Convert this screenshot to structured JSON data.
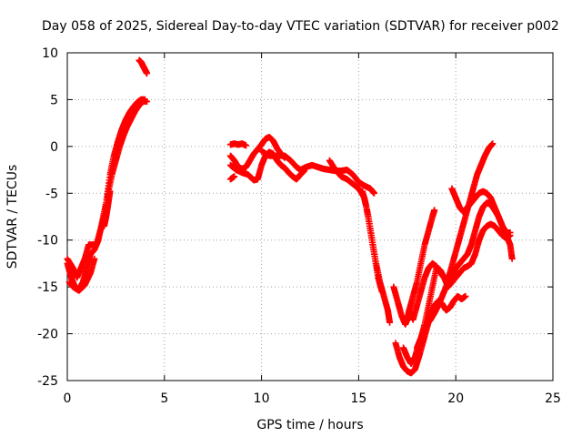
{
  "chart_data": {
    "type": "scatter",
    "title": "Day 058 of 2025, Sidereal Day-to-day VTEC variation (SDTVAR) for receiver p002",
    "xlabel": "GPS time / hours",
    "ylabel": "SDTVAR / TECUs",
    "xlim": [
      0,
      25
    ],
    "ylim": [
      -25,
      10
    ],
    "x_ticks": [
      0,
      5,
      10,
      15,
      20,
      25
    ],
    "x_tick_labels": [
      "0",
      "5",
      "10",
      "15",
      "20",
      "25"
    ],
    "y_ticks": [
      -25,
      -20,
      -15,
      -10,
      -5,
      0,
      5,
      10
    ],
    "y_tick_labels": [
      "-25",
      "-20",
      "-15",
      "-10",
      "-5",
      "0",
      "5",
      "10"
    ],
    "grid": true,
    "marker": "+",
    "series": [
      {
        "color": "#ff0000",
        "tracks": [
          [
            [
              0.0,
              -12.5
            ],
            [
              0.2,
              -14.0
            ],
            [
              0.4,
              -15.0
            ],
            [
              0.6,
              -15.3
            ],
            [
              0.8,
              -14.5
            ],
            [
              1.0,
              -13.0
            ],
            [
              1.2,
              -11.5
            ],
            [
              1.4,
              -11.0
            ],
            [
              1.6,
              -10.0
            ],
            [
              1.8,
              -8.0
            ],
            [
              2.0,
              -6.0
            ],
            [
              2.2,
              -3.0
            ],
            [
              2.4,
              -1.0
            ],
            [
              2.6,
              0.5
            ],
            [
              2.8,
              1.8
            ],
            [
              3.0,
              2.8
            ],
            [
              3.2,
              3.6
            ],
            [
              3.4,
              4.2
            ],
            [
              3.6,
              4.7
            ],
            [
              3.8,
              5.0
            ],
            [
              4.0,
              5.0
            ]
          ],
          [
            [
              0.0,
              -12.0
            ],
            [
              0.3,
              -13.0
            ],
            [
              0.5,
              -14.0
            ],
            [
              0.7,
              -13.0
            ],
            [
              0.9,
              -12.0
            ],
            [
              1.1,
              -10.5
            ],
            [
              1.3,
              -10.5
            ],
            [
              1.5,
              -10.5
            ],
            [
              1.7,
              -9.0
            ],
            [
              1.9,
              -7.5
            ],
            [
              2.1,
              -5.0
            ],
            [
              2.3,
              -3.0
            ],
            [
              2.5,
              -1.5
            ],
            [
              2.7,
              0.0
            ],
            [
              2.9,
              1.2
            ],
            [
              3.1,
              2.2
            ],
            [
              3.3,
              3.0
            ],
            [
              3.5,
              3.8
            ],
            [
              3.7,
              4.4
            ],
            [
              3.9,
              4.8
            ],
            [
              4.1,
              4.8
            ]
          ],
          [
            [
              0.1,
              -14.5
            ],
            [
              0.3,
              -15.0
            ],
            [
              0.6,
              -15.4
            ],
            [
              0.9,
              -14.8
            ],
            [
              1.2,
              -13.5
            ],
            [
              1.4,
              -12.0
            ]
          ],
          [
            [
              1.9,
              -8.5
            ],
            [
              2.0,
              -7.5
            ],
            [
              2.1,
              -6.2
            ],
            [
              2.2,
              -4.8
            ]
          ],
          [
            [
              3.7,
              9.2
            ],
            [
              3.8,
              9.0
            ],
            [
              3.9,
              8.6
            ],
            [
              4.0,
              8.2
            ],
            [
              4.1,
              7.8
            ]
          ],
          [
            [
              8.4,
              0.2
            ],
            [
              8.6,
              0.3
            ],
            [
              8.8,
              0.2
            ],
            [
              9.0,
              0.3
            ],
            [
              9.2,
              0.1
            ]
          ],
          [
            [
              8.4,
              -1.0
            ],
            [
              8.6,
              -1.5
            ],
            [
              8.8,
              -2.2
            ],
            [
              9.0,
              -2.4
            ],
            [
              9.2,
              -2.2
            ],
            [
              9.4,
              -1.5
            ],
            [
              9.6,
              -0.8
            ],
            [
              9.8,
              -0.3
            ],
            [
              10.0,
              0.2
            ],
            [
              10.2,
              0.8
            ],
            [
              10.4,
              1.0
            ],
            [
              10.6,
              0.6
            ],
            [
              10.8,
              -0.2
            ],
            [
              11.0,
              -0.8
            ],
            [
              11.2,
              -1.2
            ]
          ],
          [
            [
              8.4,
              -2.0
            ],
            [
              8.7,
              -2.5
            ],
            [
              9.0,
              -2.8
            ],
            [
              9.3,
              -3.0
            ],
            [
              9.6,
              -3.6
            ],
            [
              9.8,
              -3.5
            ],
            [
              10.0,
              -2.0
            ],
            [
              10.2,
              -1.0
            ],
            [
              10.4,
              -0.6
            ],
            [
              10.6,
              -0.8
            ],
            [
              10.8,
              -1.5
            ],
            [
              11.0,
              -2.0
            ],
            [
              11.2,
              -2.3
            ],
            [
              11.4,
              -2.8
            ],
            [
              11.6,
              -3.2
            ],
            [
              11.8,
              -3.5
            ],
            [
              12.0,
              -3.0
            ],
            [
              12.2,
              -2.6
            ]
          ],
          [
            [
              8.4,
              -3.5
            ],
            [
              8.6,
              -3.2
            ]
          ],
          [
            [
              10.0,
              -0.5
            ],
            [
              10.4,
              -1.0
            ],
            [
              10.8,
              -1.0
            ],
            [
              11.2,
              -1.0
            ],
            [
              11.5,
              -1.5
            ],
            [
              11.8,
              -2.2
            ],
            [
              12.0,
              -2.5
            ],
            [
              12.3,
              -2.2
            ],
            [
              12.6,
              -2.0
            ],
            [
              12.9,
              -2.2
            ],
            [
              13.2,
              -2.4
            ],
            [
              13.5,
              -2.5
            ],
            [
              13.8,
              -2.6
            ],
            [
              14.1,
              -2.6
            ],
            [
              14.4,
              -2.5
            ],
            [
              14.7,
              -3.0
            ],
            [
              15.0,
              -3.8
            ],
            [
              15.3,
              -4.2
            ],
            [
              15.6,
              -4.5
            ],
            [
              15.8,
              -5.0
            ]
          ],
          [
            [
              13.5,
              -1.5
            ],
            [
              13.8,
              -2.5
            ],
            [
              14.1,
              -3.2
            ],
            [
              14.4,
              -3.5
            ],
            [
              14.7,
              -4.0
            ],
            [
              15.0,
              -4.5
            ],
            [
              15.3,
              -5.5
            ],
            [
              15.5,
              -7.5
            ],
            [
              15.7,
              -10.0
            ],
            [
              15.9,
              -12.5
            ],
            [
              16.1,
              -14.5
            ],
            [
              16.3,
              -16.0
            ],
            [
              16.5,
              -17.5
            ],
            [
              16.6,
              -18.8
            ]
          ],
          [
            [
              15.2,
              -4.8
            ],
            [
              15.4,
              -6.5
            ],
            [
              15.6,
              -9.0
            ],
            [
              15.8,
              -11.5
            ],
            [
              16.0,
              -14.0
            ],
            [
              16.2,
              -15.5
            ]
          ],
          [
            [
              16.8,
              -15.0
            ],
            [
              17.0,
              -16.5
            ],
            [
              17.2,
              -18.0
            ],
            [
              17.4,
              -19.0
            ],
            [
              17.5,
              -18.5
            ],
            [
              17.6,
              -17.5
            ],
            [
              17.8,
              -16.0
            ],
            [
              18.0,
              -14.5
            ],
            [
              18.2,
              -12.5
            ],
            [
              18.4,
              -10.5
            ],
            [
              18.6,
              -9.0
            ],
            [
              18.8,
              -7.5
            ],
            [
              18.9,
              -6.8
            ]
          ],
          [
            [
              16.9,
              -21.0
            ],
            [
              17.1,
              -22.5
            ],
            [
              17.3,
              -23.5
            ],
            [
              17.5,
              -24.0
            ],
            [
              17.7,
              -24.2
            ],
            [
              17.9,
              -23.8
            ],
            [
              18.1,
              -22.5
            ],
            [
              18.3,
              -21.0
            ],
            [
              18.5,
              -19.5
            ],
            [
              18.7,
              -18.0
            ],
            [
              18.9,
              -17.0
            ],
            [
              19.1,
              -16.5
            ],
            [
              19.3,
              -16.8
            ],
            [
              19.5,
              -17.5
            ],
            [
              19.7,
              -17.2
            ],
            [
              19.9,
              -16.5
            ],
            [
              20.1,
              -16.0
            ],
            [
              20.3,
              -16.3
            ],
            [
              20.5,
              -16.0
            ]
          ],
          [
            [
              17.3,
              -21.5
            ],
            [
              17.5,
              -22.5
            ],
            [
              17.7,
              -23.2
            ],
            [
              17.9,
              -22.5
            ],
            [
              18.1,
              -21.0
            ],
            [
              18.3,
              -20.0
            ],
            [
              18.5,
              -19.0
            ],
            [
              18.7,
              -18.5
            ],
            [
              18.9,
              -17.8
            ],
            [
              19.1,
              -17.0
            ],
            [
              19.3,
              -16.0
            ],
            [
              19.5,
              -15.0
            ],
            [
              19.7,
              -13.5
            ],
            [
              19.9,
              -12.0
            ],
            [
              20.1,
              -10.5
            ],
            [
              20.3,
              -9.0
            ],
            [
              20.5,
              -7.5
            ],
            [
              20.7,
              -6.0
            ],
            [
              20.9,
              -4.5
            ],
            [
              21.1,
              -3.0
            ],
            [
              21.3,
              -2.0
            ],
            [
              21.5,
              -1.0
            ],
            [
              21.7,
              -0.2
            ],
            [
              21.9,
              0.3
            ]
          ],
          [
            [
              18.0,
              -21.5
            ],
            [
              18.2,
              -20.5
            ],
            [
              18.4,
              -19.0
            ],
            [
              18.6,
              -17.0
            ],
            [
              18.8,
              -15.0
            ],
            [
              19.0,
              -13.0
            ],
            [
              19.2,
              -13.2
            ],
            [
              19.4,
              -14.0
            ],
            [
              19.6,
              -15.0
            ],
            [
              19.8,
              -14.5
            ],
            [
              20.0,
              -14.0
            ],
            [
              20.2,
              -13.5
            ],
            [
              20.4,
              -13.0
            ],
            [
              20.6,
              -12.8
            ],
            [
              20.8,
              -12.5
            ],
            [
              21.0,
              -11.5
            ],
            [
              21.2,
              -10.0
            ],
            [
              21.4,
              -9.0
            ],
            [
              21.6,
              -8.5
            ],
            [
              21.8,
              -8.3
            ],
            [
              22.0,
              -8.5
            ],
            [
              22.2,
              -9.0
            ],
            [
              22.4,
              -9.5
            ],
            [
              22.6,
              -9.8
            ],
            [
              22.8,
              -9.5
            ]
          ],
          [
            [
              17.6,
              -17.5
            ],
            [
              17.8,
              -18.5
            ],
            [
              18.0,
              -17.0
            ],
            [
              18.2,
              -15.5
            ],
            [
              18.4,
              -14.0
            ],
            [
              18.6,
              -13.0
            ],
            [
              18.8,
              -12.5
            ],
            [
              19.0,
              -12.8
            ],
            [
              19.2,
              -13.5
            ],
            [
              19.4,
              -14.0
            ],
            [
              19.6,
              -14.2
            ],
            [
              19.8,
              -13.8
            ],
            [
              20.0,
              -13.0
            ],
            [
              20.2,
              -12.5
            ],
            [
              20.4,
              -12.0
            ],
            [
              20.6,
              -11.5
            ],
            [
              20.8,
              -10.5
            ],
            [
              21.0,
              -9.0
            ],
            [
              21.2,
              -7.5
            ],
            [
              21.4,
              -6.5
            ],
            [
              21.6,
              -6.0
            ],
            [
              21.8,
              -6.2
            ],
            [
              22.0,
              -6.8
            ],
            [
              22.2,
              -7.5
            ],
            [
              22.4,
              -8.5
            ],
            [
              22.6,
              -9.5
            ],
            [
              22.8,
              -10.5
            ],
            [
              22.9,
              -12.0
            ]
          ],
          [
            [
              19.8,
              -4.5
            ],
            [
              20.0,
              -5.5
            ],
            [
              20.2,
              -6.5
            ],
            [
              20.4,
              -7.0
            ],
            [
              20.6,
              -6.5
            ],
            [
              20.8,
              -6.0
            ],
            [
              21.0,
              -5.5
            ],
            [
              21.2,
              -5.0
            ],
            [
              21.4,
              -4.8
            ],
            [
              21.6,
              -5.0
            ],
            [
              21.8,
              -5.5
            ],
            [
              22.0,
              -6.5
            ],
            [
              22.2,
              -7.5
            ],
            [
              22.4,
              -8.5
            ],
            [
              22.6,
              -9.2
            ],
            [
              22.8,
              -9.2
            ]
          ]
        ]
      }
    ]
  }
}
